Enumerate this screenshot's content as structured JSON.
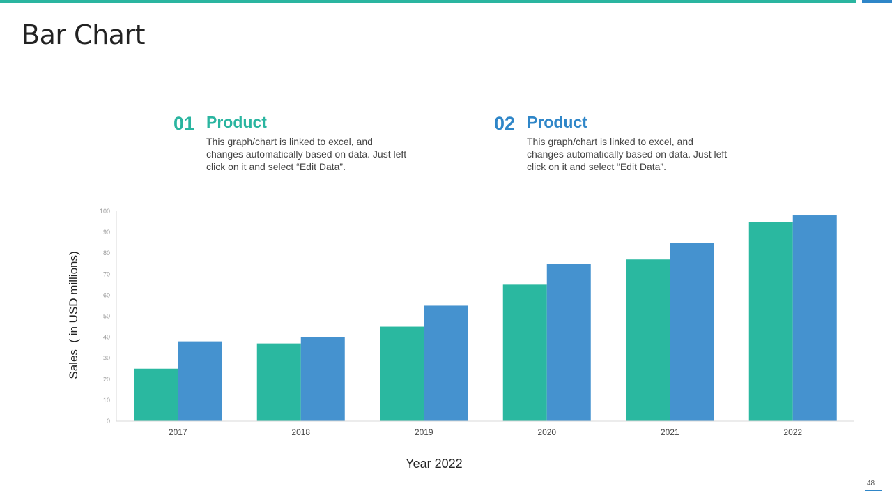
{
  "slide": {
    "title": "Bar Chart",
    "page_number": "48",
    "colors": {
      "teal": "#2ab5a0",
      "blue": "#2f86c8"
    }
  },
  "legend": [
    {
      "number": "01",
      "heading": "Product",
      "description": "This graph/chart is linked to excel, and changes automatically based on data. Just left click on it and select “Edit Data”.",
      "color": "#2ab5a0"
    },
    {
      "number": "02",
      "heading": "Product",
      "description": "This graph/chart is linked to excel, and changes automatically based on data. Just left click on it and select “Edit Data”.",
      "color": "#2f86c8"
    }
  ],
  "chart_data": {
    "type": "bar",
    "categories": [
      "2017",
      "2018",
      "2019",
      "2020",
      "2021",
      "2022"
    ],
    "series": [
      {
        "values": [
          25,
          37,
          45,
          65,
          77,
          95
        ],
        "color": "#2ab8a0"
      },
      {
        "values": [
          38,
          40,
          55,
          75,
          85,
          98
        ],
        "color": "#4592cf"
      }
    ],
    "xlabel": "Year 2022",
    "ylabel": "Sales  ( in USD millions)",
    "ylim": [
      0,
      100
    ],
    "yticks": [
      0,
      10,
      20,
      30,
      40,
      50,
      60,
      70,
      80,
      90,
      100
    ],
    "grid": false,
    "legend_placement": "top"
  }
}
